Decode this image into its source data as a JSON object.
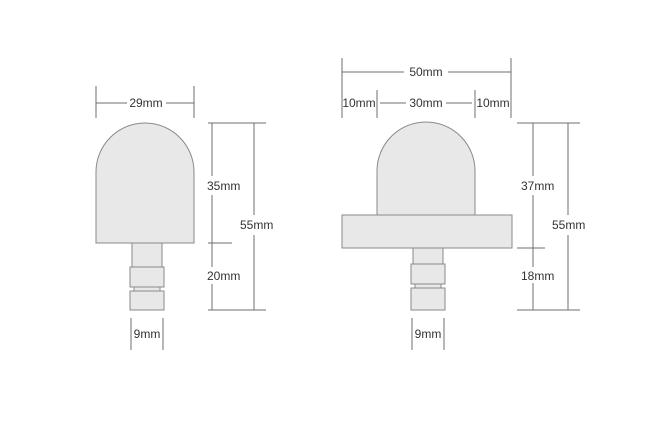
{
  "colors": {
    "background": "#ffffff",
    "part_fill": "#e8e8e8",
    "part_stroke": "#8a8a8a",
    "dimension_line": "#6f6f6f",
    "label_text": "#333333"
  },
  "left_part": {
    "width_label": "29mm",
    "head_height_label": "35mm",
    "total_height_label": "55mm",
    "stem_height_label": "20mm",
    "stem_width_label": "9mm"
  },
  "right_part": {
    "total_width_label": "50mm",
    "flange_left_label": "10mm",
    "dome_width_label": "30mm",
    "flange_right_label": "10mm",
    "head_height_label": "37mm",
    "total_height_label": "55mm",
    "stem_height_label": "18mm",
    "stem_width_label": "9mm"
  }
}
